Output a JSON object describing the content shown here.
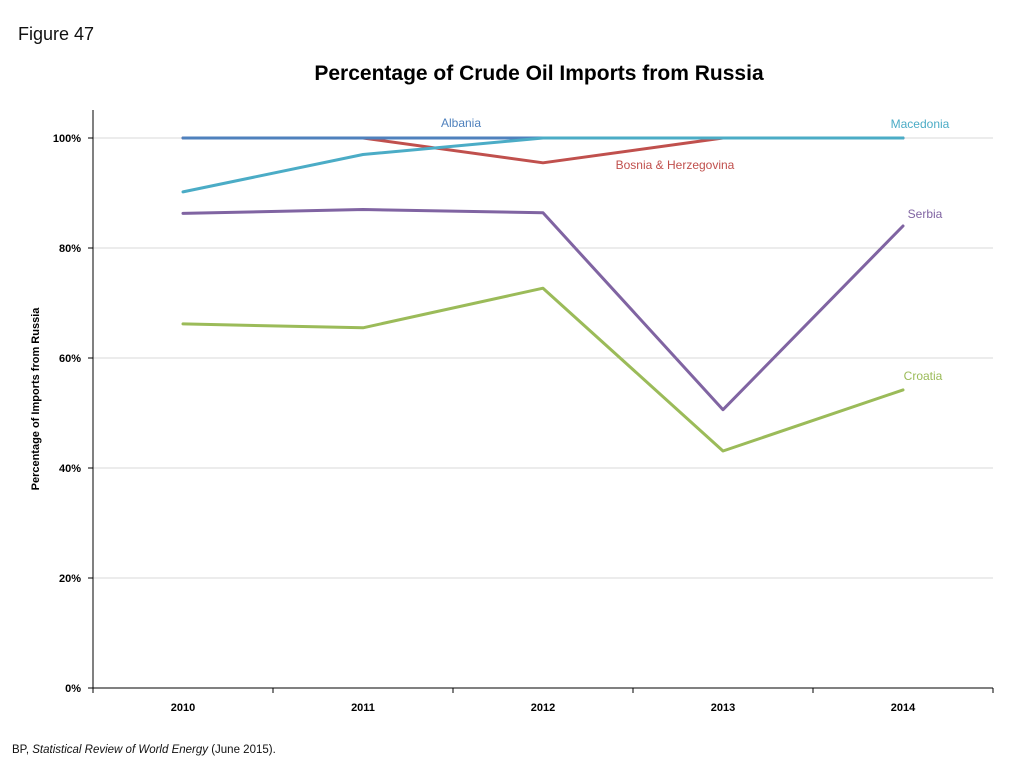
{
  "figure_label": "Figure 47",
  "source": {
    "prefix": "BP, ",
    "title": "Statistical Review of World Energy",
    "suffix": " (June 2015)."
  },
  "chart_data": {
    "type": "line",
    "title": "Percentage of Crude Oil Imports from Russia",
    "xlabel": "",
    "ylabel": "Percentage of Imports from Russia",
    "ylim": [
      0,
      100
    ],
    "yticks": [
      "0%",
      "20%",
      "40%",
      "60%",
      "80%",
      "100%"
    ],
    "ytick_values": [
      0,
      20,
      40,
      60,
      80,
      100
    ],
    "grid": true,
    "legend": "inline-labels",
    "x": [
      "2010",
      "2011",
      "2012",
      "2013",
      "2014"
    ],
    "series": [
      {
        "name": "Bosnia & Herzegovina",
        "color": "#c0504d",
        "values": [
          100,
          100,
          95.5,
          100,
          100
        ]
      },
      {
        "name": "Albania",
        "color": "#4f81bd",
        "values": [
          100,
          100,
          100,
          100,
          100
        ]
      },
      {
        "name": "Macedonia",
        "color": "#4bacc6",
        "values": [
          90.2,
          97,
          100,
          100,
          100
        ]
      },
      {
        "name": "Serbia",
        "color": "#8064a2",
        "values": [
          86.3,
          87,
          86.4,
          50.6,
          84
        ]
      },
      {
        "name": "Croatia",
        "color": "#9bbb59",
        "values": [
          66.2,
          65.5,
          72.7,
          43.1,
          54.2
        ]
      }
    ]
  }
}
